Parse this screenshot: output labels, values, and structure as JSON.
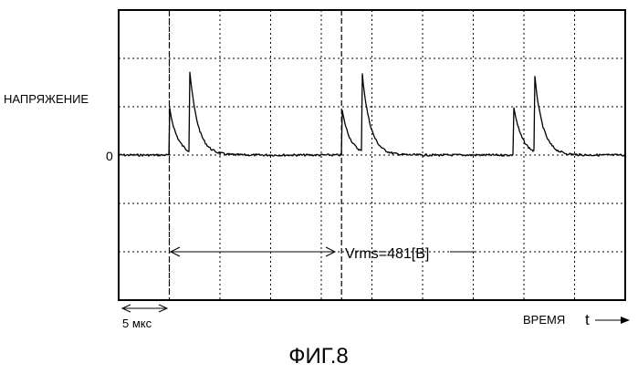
{
  "chart_data": {
    "type": "line",
    "title": "",
    "ylabel": "НАПРЯЖЕНИЕ",
    "xlabel": "ВРЕМЯ",
    "xlabel_symbol": "t",
    "zero_label": "0",
    "time_scale_label": "5 мкс",
    "measurement_label": "Vrms=481[В]",
    "figure_caption": "ФИГ.8",
    "grid": true,
    "x_divisions": 10,
    "y_divisions": 6,
    "pulse_period_divisions": 3.4,
    "pulses": [
      {
        "onset_div": 1.0,
        "second_spike_div": 1.4
      },
      {
        "onset_div": 4.4,
        "second_spike_div": 4.8
      },
      {
        "onset_div": 7.8,
        "second_spike_div": 8.2
      }
    ],
    "peak_first_div": 1.0,
    "peak_second_div": 1.75
  }
}
